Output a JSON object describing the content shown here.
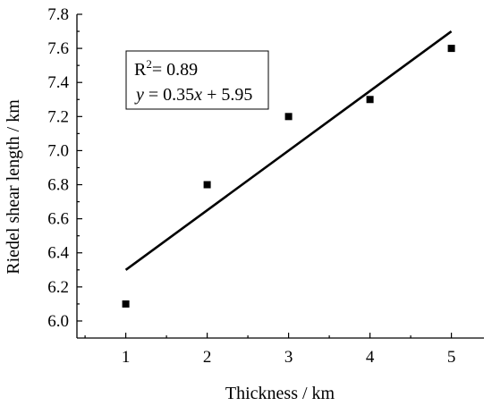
{
  "chart_data": {
    "type": "scatter",
    "xlabel": "Thickness / km",
    "ylabel": "Riedel shear length / km",
    "xlim": [
      0.4,
      5.4
    ],
    "ylim": [
      5.9,
      7.8
    ],
    "xticks": [
      "1",
      "2",
      "3",
      "4",
      "5"
    ],
    "yticks": [
      "6.0",
      "6.2",
      "6.4",
      "6.6",
      "6.8",
      "7.0",
      "7.2",
      "7.4",
      "7.6",
      "7.8"
    ],
    "series": [
      {
        "marker": "square",
        "color": "#000000",
        "points": [
          {
            "x": 1,
            "y": 6.1
          },
          {
            "x": 2,
            "y": 6.8
          },
          {
            "x": 3,
            "y": 7.2
          },
          {
            "x": 4,
            "y": 7.3
          },
          {
            "x": 5,
            "y": 7.6
          }
        ]
      }
    ],
    "fit_line": {
      "x0": 1,
      "y0": 6.3,
      "x1": 5,
      "y1": 7.7,
      "color": "#000000"
    },
    "legend": {
      "placement": "top-left",
      "r2_prefix": "R",
      "r2_sup": "2",
      "r2_value": "= 0.89",
      "eq_y": "y",
      "eq_mid": " = 0.35",
      "eq_x": "x",
      "eq_end": " + 5.95"
    }
  }
}
